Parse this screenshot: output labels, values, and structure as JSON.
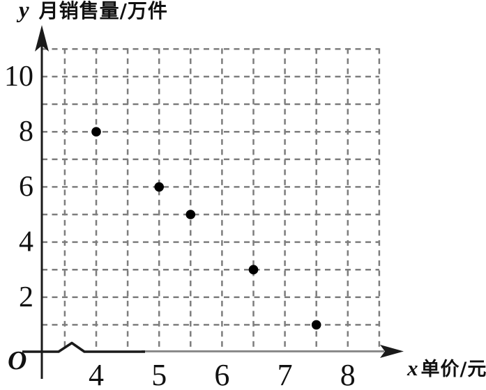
{
  "chart_data": {
    "type": "scatter",
    "title": "y 月销售量/万件",
    "points": [
      {
        "x": 4,
        "y": 8
      },
      {
        "x": 5,
        "y": 6
      },
      {
        "x": 5.5,
        "y": 5
      },
      {
        "x": 6.5,
        "y": 3
      },
      {
        "x": 7.5,
        "y": 1
      }
    ],
    "x_axis": {
      "variable": "x",
      "title": "单价/元",
      "ticks": [
        4,
        5,
        6,
        7,
        8
      ],
      "grid_min": 3.5,
      "grid_max": 8.5,
      "grid_step": 0.5,
      "has_axis_break": true
    },
    "y_axis": {
      "variable": "y",
      "title": "月销售量/万件",
      "ticks": [
        2,
        4,
        6,
        8,
        10
      ],
      "grid_min": 1,
      "grid_max": 11,
      "grid_step": 1
    },
    "origin_label": "O",
    "grid_style": "dashed",
    "legend": "none",
    "colors": {
      "point": "#000000",
      "grid": "#7d7d7d",
      "axis_dark": "#1a1a1a",
      "axis_gray": "#8a8a8a",
      "text": "#111111",
      "background": "#ffffff"
    }
  }
}
